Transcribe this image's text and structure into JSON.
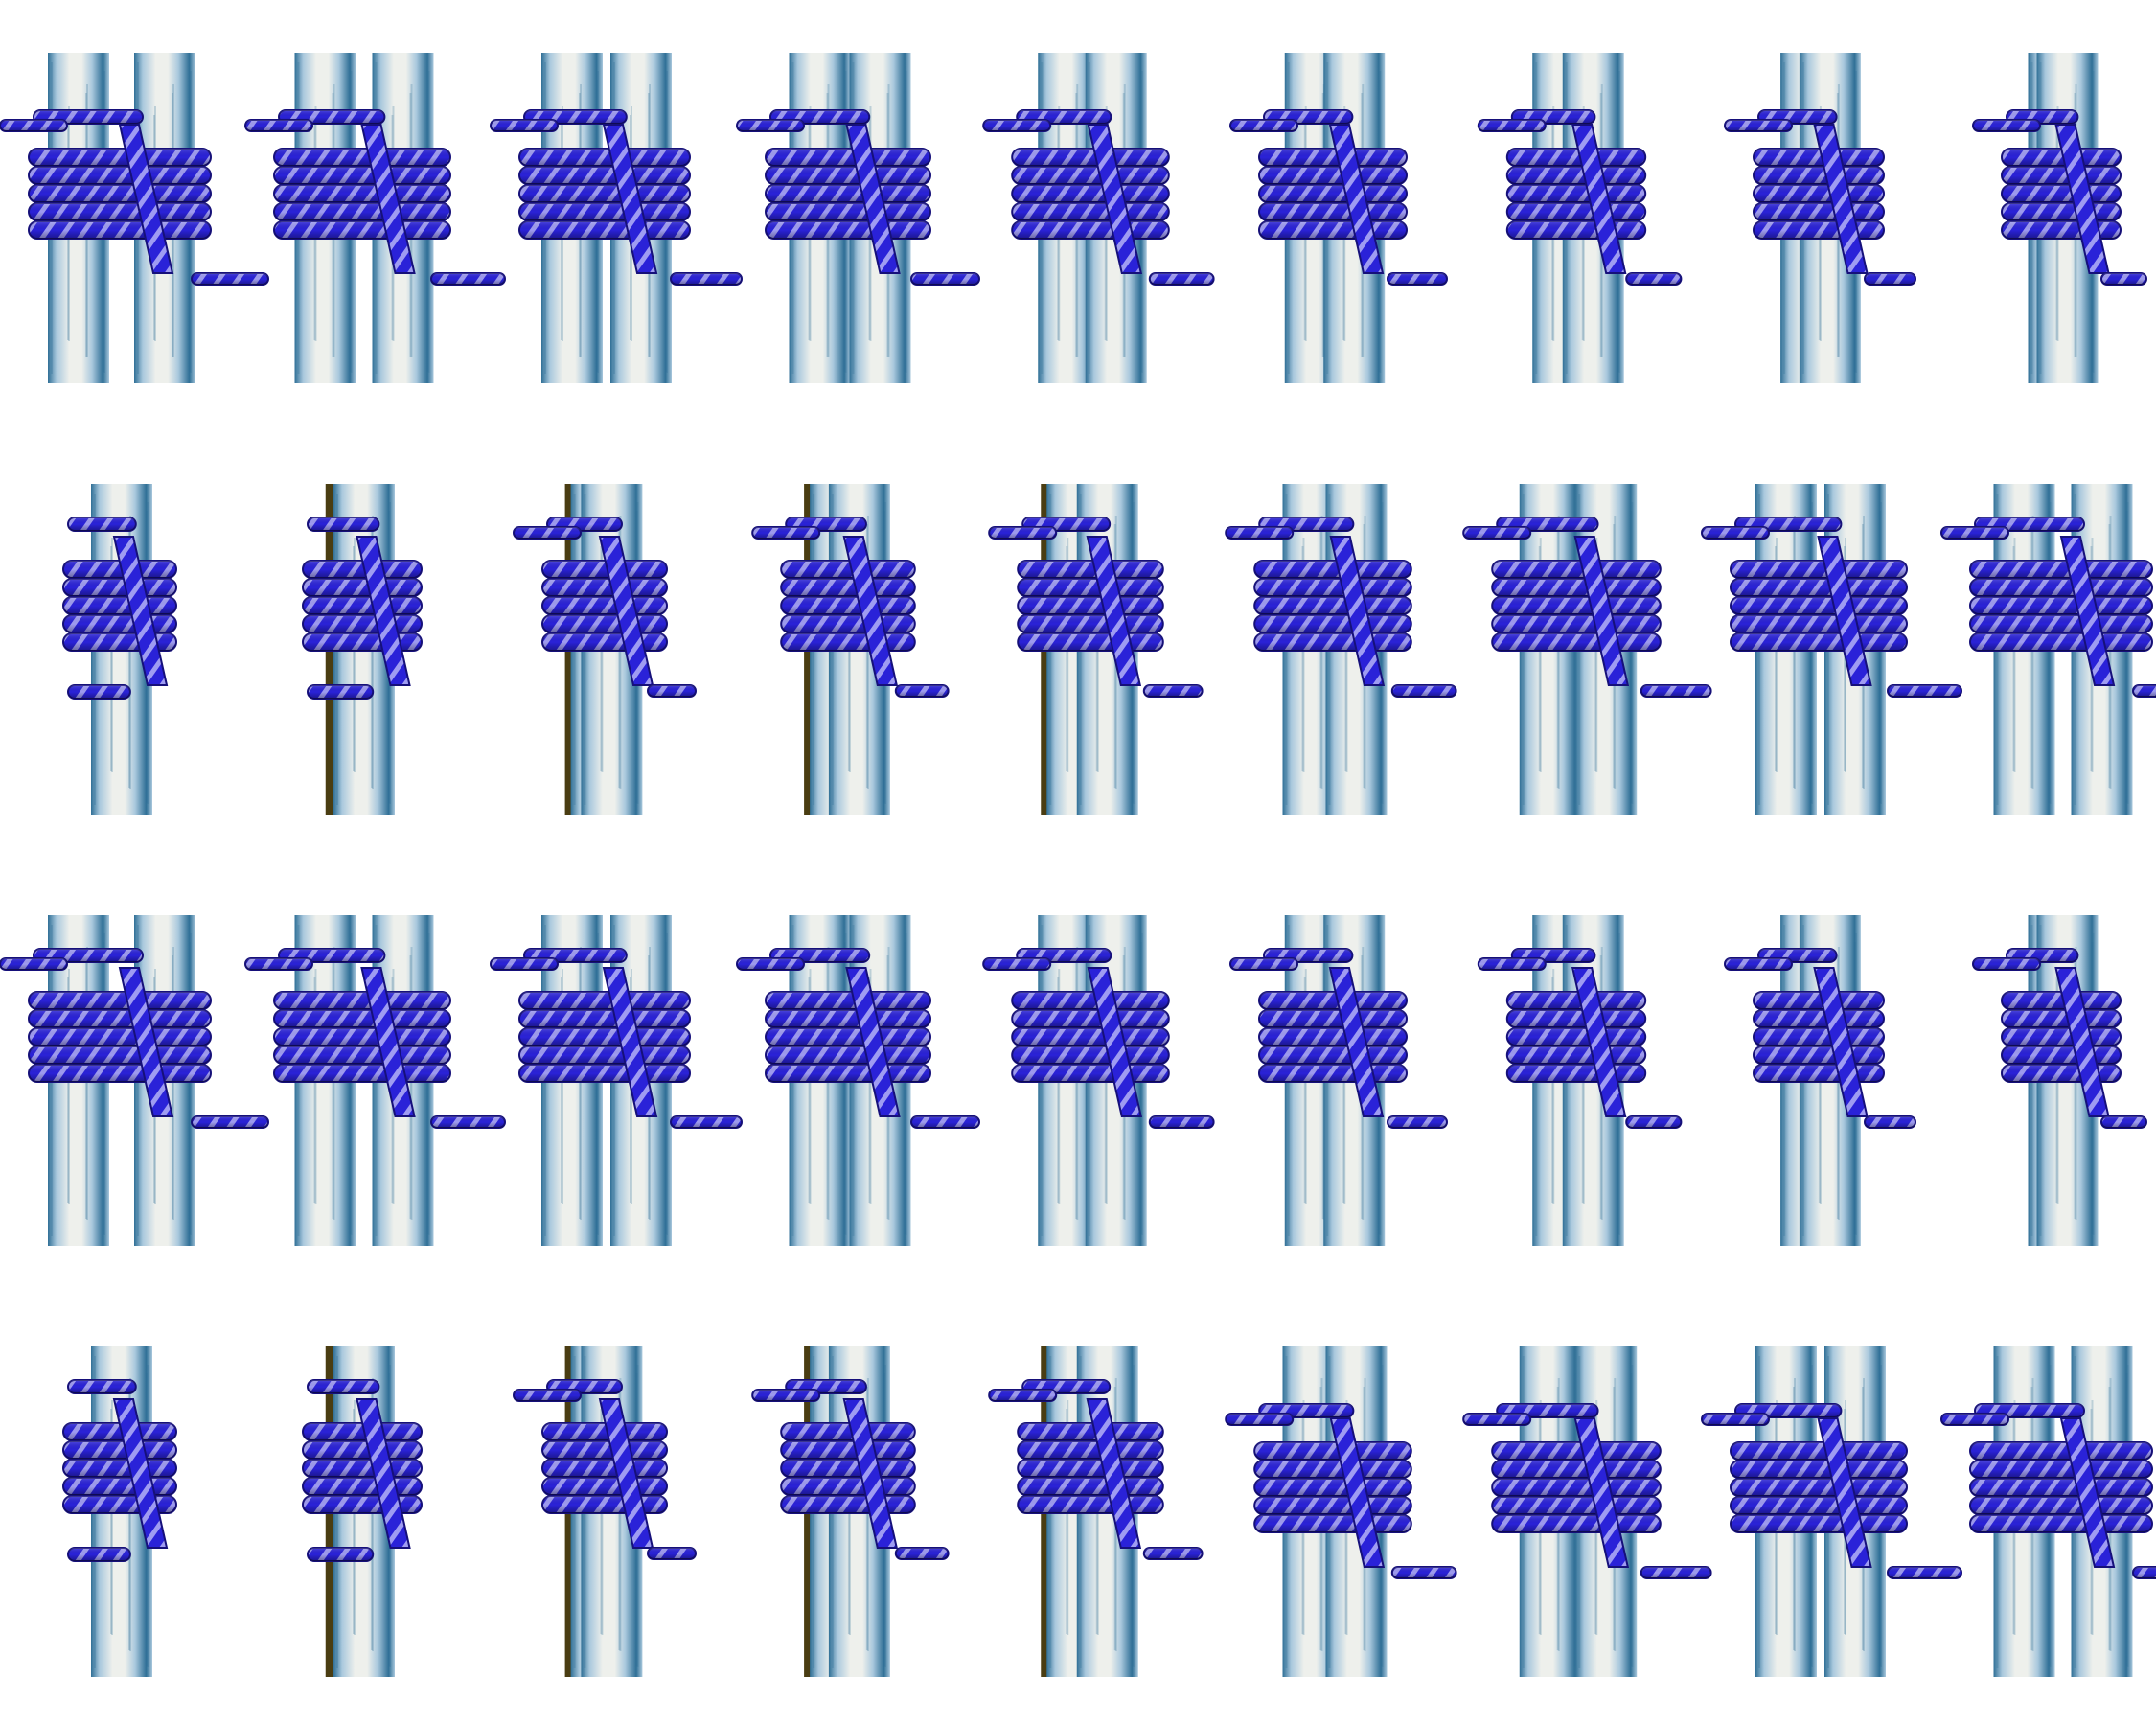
{
  "colors": {
    "background": "#ffffff",
    "pole_light": "#eef0ec",
    "pole_mid": "#a9c8dd",
    "pole_dark": "#2f6f96",
    "rope": "#2a22d8",
    "rope_dark": "#16107a",
    "rope_stripe": "#9f9cf2",
    "shadow_pole": "#4a3d12"
  },
  "grid": {
    "rows": 4,
    "columns": 9
  },
  "frames": [
    {
      "row": 1,
      "index": 1,
      "poles": 2,
      "pole_gap": 1.0,
      "rope_offset": 0.0,
      "wraps": 5,
      "lashing": "over-left-start"
    },
    {
      "row": 1,
      "index": 2,
      "poles": 2,
      "pole_gap": 0.9,
      "rope_offset": 0.05,
      "wraps": 5,
      "lashing": "over-left-start"
    },
    {
      "row": 1,
      "index": 3,
      "poles": 2,
      "pole_gap": 0.8,
      "rope_offset": 0.1,
      "wraps": 5,
      "lashing": "over-left-start"
    },
    {
      "row": 1,
      "index": 4,
      "poles": 2,
      "pole_gap": 0.7,
      "rope_offset": 0.15,
      "wraps": 5,
      "lashing": "over-left-start"
    },
    {
      "row": 1,
      "index": 5,
      "poles": 2,
      "pole_gap": 0.55,
      "rope_offset": 0.22,
      "wraps": 5,
      "lashing": "over-left-start"
    },
    {
      "row": 1,
      "index": 6,
      "poles": 2,
      "pole_gap": 0.45,
      "rope_offset": 0.3,
      "wraps": 5,
      "lashing": "over-left-start"
    },
    {
      "row": 1,
      "index": 7,
      "poles": 2,
      "pole_gap": 0.35,
      "rope_offset": 0.38,
      "wraps": 5,
      "lashing": "over-left-start"
    },
    {
      "row": 1,
      "index": 8,
      "poles": 2,
      "pole_gap": 0.22,
      "rope_offset": 0.45,
      "wraps": 5,
      "lashing": "over-left-start"
    },
    {
      "row": 1,
      "index": 9,
      "poles": 2,
      "pole_gap": 0.1,
      "rope_offset": 0.55,
      "wraps": 5,
      "lashing": "over-left-start"
    },
    {
      "row": 2,
      "index": 1,
      "poles": 1,
      "pole_gap": 0.0,
      "rope_offset": 0.6,
      "wraps": 5,
      "lashing": "end-on"
    },
    {
      "row": 2,
      "index": 2,
      "poles": 1,
      "pole_gap": 0.05,
      "rope_offset": 0.55,
      "wraps": 5,
      "lashing": "end-on"
    },
    {
      "row": 2,
      "index": 3,
      "poles": 2,
      "pole_gap": 0.12,
      "rope_offset": 0.5,
      "wraps": 5,
      "lashing": "turning"
    },
    {
      "row": 2,
      "index": 4,
      "poles": 2,
      "pole_gap": 0.22,
      "rope_offset": 0.42,
      "wraps": 5,
      "lashing": "turning"
    },
    {
      "row": 2,
      "index": 5,
      "poles": 2,
      "pole_gap": 0.35,
      "rope_offset": 0.32,
      "wraps": 5,
      "lashing": "turning"
    },
    {
      "row": 2,
      "index": 6,
      "poles": 2,
      "pole_gap": 0.5,
      "rope_offset": 0.22,
      "wraps": 5,
      "lashing": "under-left-start"
    },
    {
      "row": 2,
      "index": 7,
      "poles": 2,
      "pole_gap": 0.65,
      "rope_offset": 0.12,
      "wraps": 5,
      "lashing": "under-left-start"
    },
    {
      "row": 2,
      "index": 8,
      "poles": 2,
      "pole_gap": 0.8,
      "rope_offset": 0.05,
      "wraps": 5,
      "lashing": "under-left-start"
    },
    {
      "row": 2,
      "index": 9,
      "poles": 2,
      "pole_gap": 0.9,
      "rope_offset": 0.0,
      "wraps": 5,
      "lashing": "under-left-start"
    },
    {
      "row": 3,
      "index": 1,
      "poles": 2,
      "pole_gap": 1.0,
      "rope_offset": 0.0,
      "wraps": 5,
      "lashing": "under-left-start"
    },
    {
      "row": 3,
      "index": 2,
      "poles": 2,
      "pole_gap": 0.9,
      "rope_offset": 0.05,
      "wraps": 5,
      "lashing": "under-left-start"
    },
    {
      "row": 3,
      "index": 3,
      "poles": 2,
      "pole_gap": 0.8,
      "rope_offset": 0.1,
      "wraps": 5,
      "lashing": "under-left-start"
    },
    {
      "row": 3,
      "index": 4,
      "poles": 2,
      "pole_gap": 0.7,
      "rope_offset": 0.15,
      "wraps": 5,
      "lashing": "under-left-start"
    },
    {
      "row": 3,
      "index": 5,
      "poles": 2,
      "pole_gap": 0.55,
      "rope_offset": 0.22,
      "wraps": 5,
      "lashing": "under-left-start"
    },
    {
      "row": 3,
      "index": 6,
      "poles": 2,
      "pole_gap": 0.45,
      "rope_offset": 0.3,
      "wraps": 5,
      "lashing": "under-left-start"
    },
    {
      "row": 3,
      "index": 7,
      "poles": 2,
      "pole_gap": 0.35,
      "rope_offset": 0.38,
      "wraps": 5,
      "lashing": "under-left-start"
    },
    {
      "row": 3,
      "index": 8,
      "poles": 2,
      "pole_gap": 0.22,
      "rope_offset": 0.45,
      "wraps": 5,
      "lashing": "under-left-start"
    },
    {
      "row": 3,
      "index": 9,
      "poles": 2,
      "pole_gap": 0.1,
      "rope_offset": 0.55,
      "wraps": 5,
      "lashing": "under-left-start"
    },
    {
      "row": 4,
      "index": 1,
      "poles": 1,
      "pole_gap": 0.0,
      "rope_offset": 0.6,
      "wraps": 5,
      "lashing": "end-on"
    },
    {
      "row": 4,
      "index": 2,
      "poles": 1,
      "pole_gap": 0.05,
      "rope_offset": 0.55,
      "wraps": 5,
      "lashing": "end-on"
    },
    {
      "row": 4,
      "index": 3,
      "poles": 2,
      "pole_gap": 0.12,
      "rope_offset": 0.5,
      "wraps": 5,
      "lashing": "turning"
    },
    {
      "row": 4,
      "index": 4,
      "poles": 2,
      "pole_gap": 0.22,
      "rope_offset": 0.42,
      "wraps": 5,
      "lashing": "turning"
    },
    {
      "row": 4,
      "index": 5,
      "poles": 2,
      "pole_gap": 0.35,
      "rope_offset": 0.32,
      "wraps": 5,
      "lashing": "turning"
    },
    {
      "row": 4,
      "index": 6,
      "poles": 2,
      "pole_gap": 0.5,
      "rope_offset": 0.22,
      "wraps": 5,
      "lashing": "over-left-start"
    },
    {
      "row": 4,
      "index": 7,
      "poles": 2,
      "pole_gap": 0.65,
      "rope_offset": 0.12,
      "wraps": 5,
      "lashing": "over-left-start"
    },
    {
      "row": 4,
      "index": 8,
      "poles": 2,
      "pole_gap": 0.8,
      "rope_offset": 0.05,
      "wraps": 5,
      "lashing": "over-left-start"
    },
    {
      "row": 4,
      "index": 9,
      "poles": 2,
      "pole_gap": 0.9,
      "rope_offset": 0.0,
      "wraps": 5,
      "lashing": "over-left-start"
    }
  ]
}
